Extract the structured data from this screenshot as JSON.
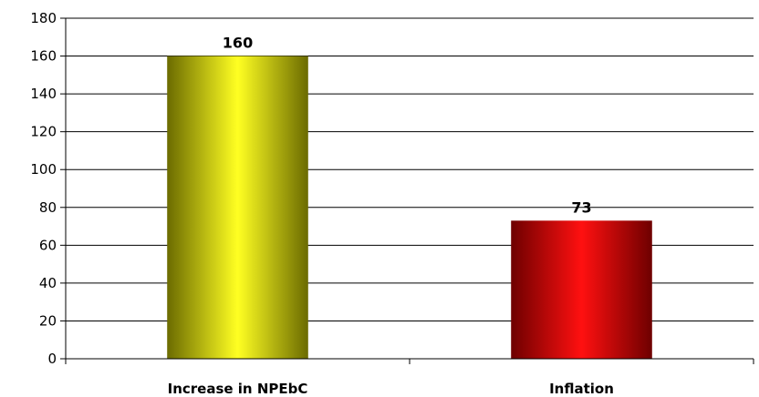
{
  "chart_data": {
    "type": "bar",
    "categories": [
      "Increase in NPEbC",
      "Inflation"
    ],
    "values": [
      160,
      73
    ],
    "data_labels": [
      "160",
      "73"
    ],
    "title": "",
    "xlabel": "",
    "ylabel": "",
    "ylim": [
      0,
      180
    ],
    "yticks": [
      0,
      20,
      40,
      60,
      80,
      100,
      120,
      140,
      160,
      180
    ],
    "grid": true,
    "legend": "none",
    "colors": {
      "bars": [
        {
          "edge": "#6b6b00",
          "center": "#ffff22"
        },
        {
          "edge": "#6e0000",
          "center": "#ff1010"
        }
      ],
      "grid": "#000000",
      "axis": "#000000"
    }
  }
}
